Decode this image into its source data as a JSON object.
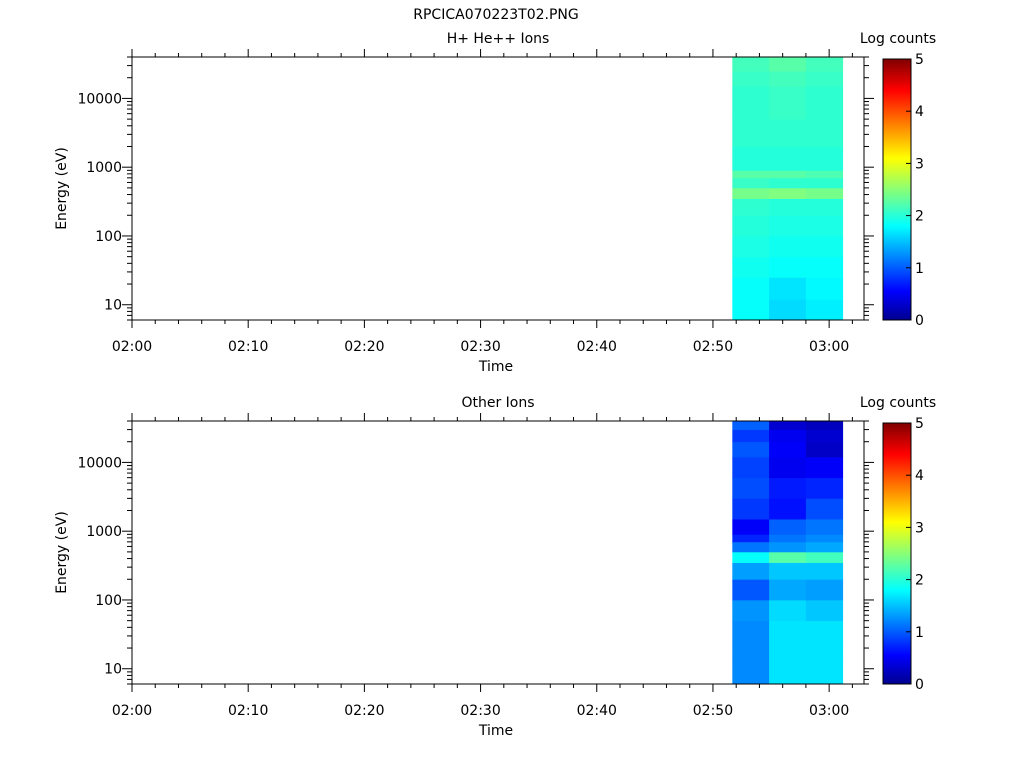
{
  "figure_title": "RPCICA070223T02.PNG",
  "chart_data": [
    {
      "type": "heatmap",
      "title": "H+ He++ Ions",
      "xlabel": "Time",
      "ylabel": "Energy (eV)",
      "yscale": "log",
      "ylim": [
        6,
        40000
      ],
      "xlim": [
        "02:00",
        "03:03"
      ],
      "x_ticks": [
        "02:00",
        "02:10",
        "02:20",
        "02:30",
        "02:40",
        "02:50",
        "03:00"
      ],
      "y_ticks": [
        10,
        100,
        1000,
        10000
      ],
      "y_tick_labels": [
        "10",
        "100",
        "1000",
        "10000"
      ],
      "colorbar": {
        "label": "Log counts",
        "range": [
          0,
          5
        ],
        "ticks": [
          "0",
          "1",
          "2",
          "3",
          "4",
          "5"
        ]
      },
      "time_bins": [
        {
          "start": "02:51:40",
          "end": "02:54:50"
        },
        {
          "start": "02:54:50",
          "end": "02:58:00"
        },
        {
          "start": "02:58:00",
          "end": "03:01:10"
        }
      ],
      "energy_bins": [
        {
          "e_lo": 6,
          "e_hi": 12,
          "values": [
            1.9,
            1.7,
            1.8
          ]
        },
        {
          "e_lo": 12,
          "e_hi": 25,
          "values": [
            1.9,
            1.75,
            1.85
          ]
        },
        {
          "e_lo": 25,
          "e_hi": 50,
          "values": [
            1.95,
            1.9,
            1.9
          ]
        },
        {
          "e_lo": 50,
          "e_hi": 100,
          "values": [
            2.0,
            1.95,
            1.95
          ]
        },
        {
          "e_lo": 100,
          "e_hi": 200,
          "values": [
            2.05,
            2.0,
            2.0
          ]
        },
        {
          "e_lo": 200,
          "e_hi": 350,
          "values": [
            2.1,
            2.05,
            2.05
          ]
        },
        {
          "e_lo": 350,
          "e_hi": 500,
          "values": [
            2.45,
            2.5,
            2.45
          ]
        },
        {
          "e_lo": 500,
          "e_hi": 700,
          "values": [
            2.15,
            2.1,
            2.1
          ]
        },
        {
          "e_lo": 700,
          "e_hi": 900,
          "values": [
            2.3,
            2.3,
            2.25
          ]
        },
        {
          "e_lo": 900,
          "e_hi": 2000,
          "values": [
            2.05,
            2.05,
            2.05
          ]
        },
        {
          "e_lo": 2000,
          "e_hi": 5000,
          "values": [
            2.1,
            2.1,
            2.1
          ]
        },
        {
          "e_lo": 5000,
          "e_hi": 15000,
          "values": [
            2.1,
            2.15,
            2.1
          ]
        },
        {
          "e_lo": 15000,
          "e_hi": 25000,
          "values": [
            2.15,
            2.2,
            2.15
          ]
        },
        {
          "e_lo": 25000,
          "e_hi": 40000,
          "values": [
            2.2,
            2.3,
            2.2
          ]
        }
      ]
    },
    {
      "type": "heatmap",
      "title": "Other Ions",
      "xlabel": "Time",
      "ylabel": "Energy (eV)",
      "yscale": "log",
      "ylim": [
        6,
        40000
      ],
      "xlim": [
        "02:00",
        "03:03"
      ],
      "x_ticks": [
        "02:00",
        "02:10",
        "02:20",
        "02:30",
        "02:40",
        "02:50",
        "03:00"
      ],
      "y_ticks": [
        10,
        100,
        1000,
        10000
      ],
      "y_tick_labels": [
        "10",
        "100",
        "1000",
        "10000"
      ],
      "colorbar": {
        "label": "Log counts",
        "range": [
          0,
          5
        ],
        "ticks": [
          "0",
          "1",
          "2",
          "3",
          "4",
          "5"
        ]
      },
      "time_bins": [
        {
          "start": "02:51:40",
          "end": "02:54:50"
        },
        {
          "start": "02:54:50",
          "end": "02:58:00"
        },
        {
          "start": "02:58:00",
          "end": "03:01:10"
        }
      ],
      "energy_bins": [
        {
          "e_lo": 6,
          "e_hi": 12,
          "values": [
            1.3,
            1.75,
            1.75
          ]
        },
        {
          "e_lo": 12,
          "e_hi": 25,
          "values": [
            1.3,
            1.75,
            1.75
          ]
        },
        {
          "e_lo": 25,
          "e_hi": 50,
          "values": [
            1.3,
            1.75,
            1.75
          ]
        },
        {
          "e_lo": 50,
          "e_hi": 100,
          "values": [
            1.35,
            1.7,
            1.6
          ]
        },
        {
          "e_lo": 100,
          "e_hi": 200,
          "values": [
            1.05,
            1.45,
            1.4
          ]
        },
        {
          "e_lo": 200,
          "e_hi": 350,
          "values": [
            1.4,
            1.6,
            1.6
          ]
        },
        {
          "e_lo": 350,
          "e_hi": 500,
          "values": [
            1.9,
            2.3,
            2.2
          ]
        },
        {
          "e_lo": 500,
          "e_hi": 700,
          "values": [
            1.2,
            1.35,
            1.45
          ]
        },
        {
          "e_lo": 700,
          "e_hi": 900,
          "values": [
            0.8,
            1.2,
            1.3
          ]
        },
        {
          "e_lo": 900,
          "e_hi": 1500,
          "values": [
            0.6,
            1.1,
            1.2
          ]
        },
        {
          "e_lo": 1500,
          "e_hi": 3000,
          "values": [
            0.9,
            0.7,
            1.0
          ]
        },
        {
          "e_lo": 3000,
          "e_hi": 6000,
          "values": [
            1.0,
            0.75,
            0.8
          ]
        },
        {
          "e_lo": 6000,
          "e_hi": 12000,
          "values": [
            0.95,
            0.55,
            0.6
          ]
        },
        {
          "e_lo": 12000,
          "e_hi": 20000,
          "values": [
            1.05,
            0.6,
            0.35
          ]
        },
        {
          "e_lo": 20000,
          "e_hi": 30000,
          "values": [
            0.9,
            0.55,
            0.4
          ]
        },
        {
          "e_lo": 30000,
          "e_hi": 40000,
          "values": [
            1.1,
            0.4,
            0.3
          ]
        }
      ]
    }
  ]
}
